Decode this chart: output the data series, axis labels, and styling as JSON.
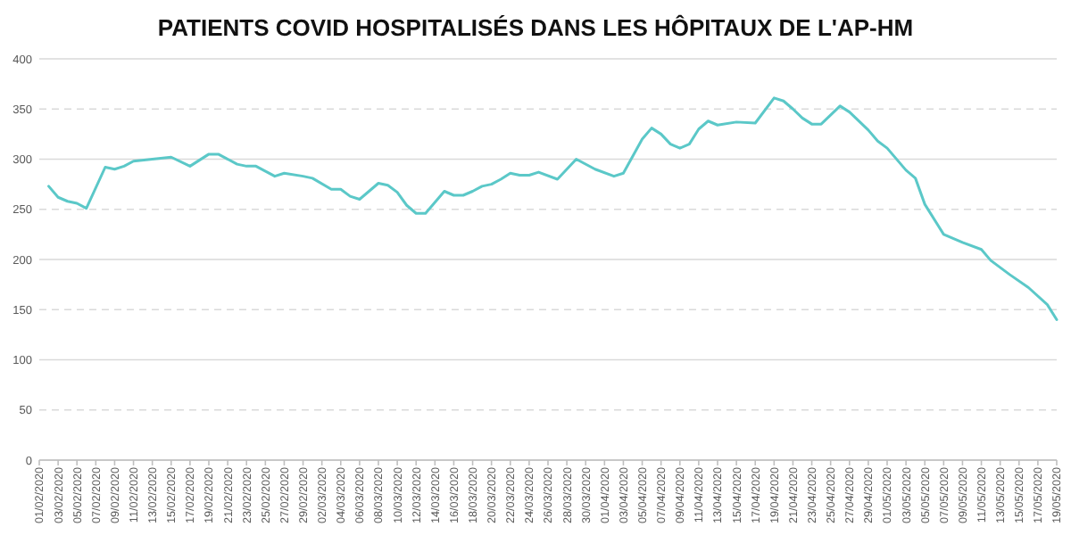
{
  "chart_data": {
    "type": "line",
    "title": "PATIENTS COVID HOSPITALISÉS DANS LES HÔPITAUX DE L'AP-HM",
    "x": [
      "2020-02-02",
      "2020-02-03",
      "2020-02-04",
      "2020-02-05",
      "2020-02-06",
      "2020-02-08",
      "2020-02-09",
      "2020-02-10",
      "2020-02-11",
      "2020-02-13",
      "2020-02-15",
      "2020-02-17",
      "2020-02-19",
      "2020-02-20",
      "2020-02-22",
      "2020-02-23",
      "2020-02-24",
      "2020-02-26",
      "2020-02-27",
      "2020-02-29",
      "2020-03-01",
      "2020-03-03",
      "2020-03-04",
      "2020-03-05",
      "2020-03-06",
      "2020-03-08",
      "2020-03-09",
      "2020-03-10",
      "2020-03-11",
      "2020-03-12",
      "2020-03-13",
      "2020-03-15",
      "2020-03-16",
      "2020-03-17",
      "2020-03-18",
      "2020-03-19",
      "2020-03-20",
      "2020-03-21",
      "2020-03-22",
      "2020-03-23",
      "2020-03-24",
      "2020-03-25",
      "2020-03-27",
      "2020-03-29",
      "2020-03-31",
      "2020-04-02",
      "2020-04-03",
      "2020-04-05",
      "2020-04-06",
      "2020-04-07",
      "2020-04-08",
      "2020-04-09",
      "2020-04-10",
      "2020-04-11",
      "2020-04-12",
      "2020-04-13",
      "2020-04-15",
      "2020-04-17",
      "2020-04-19",
      "2020-04-20",
      "2020-04-21",
      "2020-04-22",
      "2020-04-23",
      "2020-04-24",
      "2020-04-26",
      "2020-04-27",
      "2020-04-29",
      "2020-04-30",
      "2020-05-01",
      "2020-05-03",
      "2020-05-04",
      "2020-05-05",
      "2020-05-07",
      "2020-05-09",
      "2020-05-11",
      "2020-05-12",
      "2020-05-14",
      "2020-05-16",
      "2020-05-18",
      "2020-05-19"
    ],
    "series": [
      {
        "color": "#5bc8c8",
        "values": [
          273,
          262,
          258,
          256,
          251,
          292,
          290,
          293,
          298,
          300,
          302,
          293,
          305,
          305,
          295,
          293,
          293,
          283,
          286,
          283,
          281,
          270,
          270,
          263,
          260,
          276,
          274,
          267,
          254,
          246,
          246,
          268,
          264,
          264,
          268,
          273,
          275,
          280,
          286,
          284,
          284,
          287,
          280,
          300,
          290,
          283,
          286,
          320,
          331,
          325,
          315,
          311,
          315,
          330,
          338,
          334,
          337,
          336,
          361,
          358,
          350,
          341,
          335,
          335,
          353,
          347,
          329,
          318,
          311,
          289,
          281,
          255,
          225,
          217,
          210,
          199,
          185,
          172,
          155,
          140
        ]
      }
    ],
    "xlim": [
      "2020-02-01",
      "2020-05-19"
    ],
    "xticks": [
      {
        "value": "2020-02-01",
        "label": "01/02/2020"
      },
      {
        "value": "2020-02-03",
        "label": "03/02/2020"
      },
      {
        "value": "2020-02-05",
        "label": "05/02/2020"
      },
      {
        "value": "2020-02-07",
        "label": "07/02/2020"
      },
      {
        "value": "2020-02-09",
        "label": "09/02/2020"
      },
      {
        "value": "2020-02-11",
        "label": "11/02/2020"
      },
      {
        "value": "2020-02-13",
        "label": "13/02/2020"
      },
      {
        "value": "2020-02-15",
        "label": "15/02/2020"
      },
      {
        "value": "2020-02-17",
        "label": "17/02/2020"
      },
      {
        "value": "2020-02-19",
        "label": "19/02/2020"
      },
      {
        "value": "2020-02-21",
        "label": "21/02/2020"
      },
      {
        "value": "2020-02-23",
        "label": "23/02/2020"
      },
      {
        "value": "2020-02-25",
        "label": "25/02/2020"
      },
      {
        "value": "2020-02-27",
        "label": "27/02/2020"
      },
      {
        "value": "2020-02-29",
        "label": "29/02/2020"
      },
      {
        "value": "2020-03-02",
        "label": "02/03/2020"
      },
      {
        "value": "2020-03-04",
        "label": "04/03/2020"
      },
      {
        "value": "2020-03-06",
        "label": "06/03/2020"
      },
      {
        "value": "2020-03-08",
        "label": "08/03/2020"
      },
      {
        "value": "2020-03-10",
        "label": "10/03/2020"
      },
      {
        "value": "2020-03-12",
        "label": "12/03/2020"
      },
      {
        "value": "2020-03-14",
        "label": "14/03/2020"
      },
      {
        "value": "2020-03-16",
        "label": "16/03/2020"
      },
      {
        "value": "2020-03-18",
        "label": "18/03/2020"
      },
      {
        "value": "2020-03-20",
        "label": "20/03/2020"
      },
      {
        "value": "2020-03-22",
        "label": "22/03/2020"
      },
      {
        "value": "2020-03-24",
        "label": "24/03/2020"
      },
      {
        "value": "2020-03-26",
        "label": "26/03/2020"
      },
      {
        "value": "2020-03-28",
        "label": "28/03/2020"
      },
      {
        "value": "2020-03-30",
        "label": "30/03/2020"
      },
      {
        "value": "2020-04-01",
        "label": "01/04/2020"
      },
      {
        "value": "2020-04-03",
        "label": "03/04/2020"
      },
      {
        "value": "2020-04-05",
        "label": "05/04/2020"
      },
      {
        "value": "2020-04-07",
        "label": "07/04/2020"
      },
      {
        "value": "2020-04-09",
        "label": "09/04/2020"
      },
      {
        "value": "2020-04-11",
        "label": "11/04/2020"
      },
      {
        "value": "2020-04-13",
        "label": "13/04/2020"
      },
      {
        "value": "2020-04-15",
        "label": "15/04/2020"
      },
      {
        "value": "2020-04-17",
        "label": "17/04/2020"
      },
      {
        "value": "2020-04-19",
        "label": "19/04/2020"
      },
      {
        "value": "2020-04-21",
        "label": "21/04/2020"
      },
      {
        "value": "2020-04-23",
        "label": "23/04/2020"
      },
      {
        "value": "2020-04-25",
        "label": "25/04/2020"
      },
      {
        "value": "2020-04-27",
        "label": "27/04/2020"
      },
      {
        "value": "2020-04-29",
        "label": "29/04/2020"
      },
      {
        "value": "2020-05-01",
        "label": "01/05/2020"
      },
      {
        "value": "2020-05-03",
        "label": "03/05/2020"
      },
      {
        "value": "2020-05-05",
        "label": "05/05/2020"
      },
      {
        "value": "2020-05-07",
        "label": "07/05/2020"
      },
      {
        "value": "2020-05-09",
        "label": "09/05/2020"
      },
      {
        "value": "2020-05-11",
        "label": "11/05/2020"
      },
      {
        "value": "2020-05-13",
        "label": "13/05/2020"
      },
      {
        "value": "2020-05-15",
        "label": "15/05/2020"
      },
      {
        "value": "2020-05-17",
        "label": "17/05/2020"
      },
      {
        "value": "2020-05-19",
        "label": "19/05/2020"
      }
    ],
    "ylim": [
      0,
      400
    ],
    "yticks": [
      0,
      50,
      100,
      150,
      200,
      250,
      300,
      350,
      400
    ],
    "grid": "y",
    "line_style": "solid"
  }
}
